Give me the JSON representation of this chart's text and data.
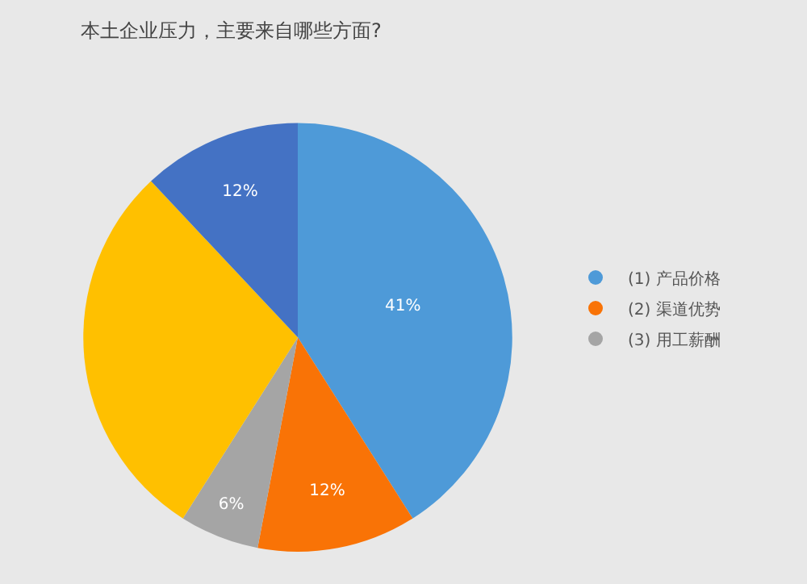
{
  "chart_data": {
    "type": "pie",
    "title": "本土企业压力，主要来自哪些方面?",
    "categories": [
      "(1) 产品价格",
      "(2) 渠道优势",
      "(3) 用工薪酬",
      null,
      null
    ],
    "values": [
      41,
      12,
      6,
      29,
      12
    ],
    "value_labels": [
      "41%",
      "12%",
      "6%",
      null,
      "12%"
    ],
    "colors": [
      "#4e9ad8",
      "#f97306",
      "#a5a5a5",
      "#ffc000",
      "#4472c4"
    ],
    "legend": "right"
  }
}
